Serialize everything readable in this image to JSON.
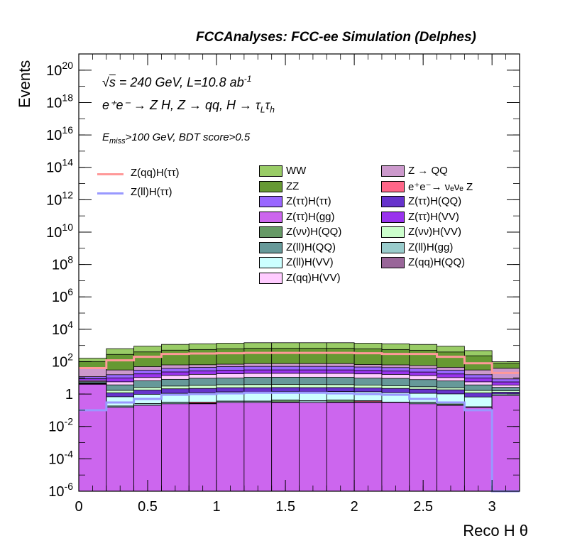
{
  "header": {
    "title": "FCCAnalyses: FCC-ee Simulation (Delphes)"
  },
  "annotations": {
    "line1_sqrt": "s",
    "line1_rest": " = 240 GeV, L=10.8 ab",
    "line1_exp": "-1",
    "line2": "e⁺e⁻ → Z H, Z → qq, H → τ",
    "line2_sub1": "L",
    "line2_tau": "τ",
    "line2_sub2": "h",
    "line3_E": "E",
    "line3_sub": "miss",
    "line3_rest": ">100 GeV, BDT score>0.5"
  },
  "chart_data": {
    "type": "histogram",
    "xlabel": "Reco H θ",
    "ylabel": "Events",
    "log_y": true,
    "xlim": [
      0,
      3.2
    ],
    "ylim": [
      1e-06,
      1e+21
    ],
    "x_ticks": [
      "0",
      "0.5",
      "1",
      "1.5",
      "2",
      "2.5",
      "3"
    ],
    "y_ticks": [
      "10^-6",
      "10^-4",
      "10^-2",
      "1",
      "10^2",
      "10^4",
      "10^6",
      "10^8",
      "10^10",
      "10^12",
      "10^14",
      "10^16",
      "10^18",
      "10^20"
    ],
    "bin_edges": [
      0,
      0.2,
      0.4,
      0.6,
      0.8,
      1.0,
      1.2,
      1.4,
      1.6,
      1.8,
      2.0,
      2.2,
      2.4,
      2.6,
      2.8,
      3.0,
      3.2
    ],
    "stack_order": "bottom-to-top",
    "stacked_series": [
      {
        "name": "Z(ττ)H(gg)",
        "color": "#cc66ee",
        "values": [
          4.0,
          0.15,
          0.2,
          0.25,
          0.25,
          0.3,
          0.3,
          0.3,
          0.3,
          0.3,
          0.3,
          0.3,
          0.25,
          0.2,
          0.15,
          0.8
        ]
      },
      {
        "name": "Z(ll)H(gg)",
        "color": "#99cccc",
        "values": [
          0,
          0.03,
          0.06,
          0.06,
          0.02,
          0.06,
          0.06,
          0.02,
          0.08,
          0.02,
          0.03,
          0.02,
          0.06,
          0.02,
          0.01,
          0
        ]
      },
      {
        "name": "e⁺e⁻→ νₑνₑ Z",
        "color": "#ff6688",
        "values": [
          0,
          0,
          0,
          0,
          0.05,
          0,
          0,
          0,
          0,
          0,
          0.05,
          0,
          0,
          0,
          0,
          0
        ]
      },
      {
        "name": "Z(νν)H(QQ)",
        "color": "#669966",
        "values": [
          0,
          0,
          0,
          0,
          0,
          0,
          0,
          0.1,
          0,
          0.1,
          0,
          0,
          0,
          0.1,
          0,
          0
        ]
      },
      {
        "name": "Z(qq)H(QQ)",
        "color": "#996699",
        "values": [
          0,
          0,
          0,
          0,
          0,
          0,
          0,
          0,
          0,
          0,
          0,
          0,
          0,
          0,
          0.0002,
          0
        ]
      },
      {
        "name": "Z(ll)H(VV)",
        "color": "#ccffff",
        "values": [
          0.2,
          0.5,
          0.7,
          0.8,
          0.9,
          1.0,
          1.0,
          1.0,
          1.0,
          1.0,
          1.0,
          0.9,
          0.8,
          0.7,
          0.5,
          0.2
        ]
      },
      {
        "name": "Z(ττ)H(QQ)",
        "color": "#6633cc",
        "values": [
          0.3,
          0.5,
          0.8,
          1.0,
          1.0,
          1.1,
          1.1,
          1.1,
          1.1,
          1.1,
          1.0,
          1.0,
          0.9,
          0.8,
          0.5,
          0.3
        ]
      },
      {
        "name": "Z(νν)H(VV)",
        "color": "#ccffcc",
        "values": [
          0.3,
          0.5,
          0.8,
          1.0,
          1.2,
          1.3,
          1.4,
          1.4,
          1.4,
          1.3,
          1.2,
          1.0,
          0.8,
          0.6,
          0.5,
          0.3
        ]
      },
      {
        "name": "Z(ll)H(QQ)",
        "color": "#669999",
        "values": [
          1,
          2,
          4,
          5,
          6,
          6,
          7,
          7,
          7,
          7,
          6,
          6,
          5,
          4,
          2,
          1
        ]
      },
      {
        "name": "Z(qq)H(VV)",
        "color": "#ffccff",
        "values": [
          1,
          2,
          4,
          6,
          7,
          8,
          8,
          8,
          8,
          8,
          8,
          7,
          6,
          4,
          2,
          1
        ]
      },
      {
        "name": "Z(ττ)H(VV)",
        "color": "#9933ee",
        "values": [
          2,
          4,
          7,
          9,
          10,
          12,
          12,
          12,
          12,
          12,
          11,
          10,
          9,
          7,
          4,
          2
        ]
      },
      {
        "name": "Z(ττ)H(ττ)",
        "color": "#9966ff",
        "values": [
          3,
          6,
          12,
          15,
          18,
          20,
          20,
          20,
          20,
          20,
          18,
          17,
          15,
          12,
          6,
          3
        ]
      },
      {
        "name": "Z → QQ",
        "color": "#cc99cc",
        "values": [
          30,
          15,
          20,
          25,
          20,
          20,
          25,
          25,
          25,
          25,
          20,
          20,
          20,
          15,
          15,
          30
        ]
      },
      {
        "name": "ZZ",
        "color": "#669933",
        "values": [
          60,
          250,
          350,
          450,
          500,
          550,
          600,
          600,
          600,
          600,
          550,
          500,
          450,
          350,
          200,
          40
        ]
      },
      {
        "name": "WW",
        "color": "#99cc66",
        "values": [
          60,
          350,
          500,
          650,
          700,
          750,
          800,
          800,
          800,
          800,
          750,
          700,
          650,
          500,
          250,
          20
        ]
      }
    ],
    "overlay_series": [
      {
        "name": "Z(qq)H(ττ)",
        "color": "#ff9999",
        "values": [
          40,
          120,
          200,
          300,
          320,
          330,
          350,
          350,
          350,
          350,
          330,
          300,
          300,
          200,
          80,
          20
        ]
      },
      {
        "name": "Z(ll)H(ττ)",
        "color": "#9999ff",
        "values": [
          0.1,
          0.3,
          0.5,
          0.9,
          1.0,
          1.1,
          1.2,
          1.2,
          1.2,
          1.1,
          1.0,
          0.9,
          0.5,
          0.3,
          0.1,
          0
        ]
      }
    ],
    "legend_placement": "top-right",
    "legend": {
      "lines": [
        "Z(qq)H(ττ)",
        "Z(ll)H(ττ)"
      ],
      "left_column": [
        "WW",
        "ZZ",
        "Z(ττ)H(ττ)",
        "Z(ττ)H(gg)",
        "Z(νν)H(QQ)",
        "Z(ll)H(QQ)",
        "Z(ll)H(VV)",
        "Z(qq)H(VV)"
      ],
      "right_column": [
        "Z → QQ",
        "e⁺e⁻→ νₑνₑ Z",
        "Z(ττ)H(QQ)",
        "Z(ττ)H(VV)",
        "Z(νν)H(VV)",
        "Z(ll)H(gg)",
        "Z(qq)H(QQ)"
      ]
    }
  }
}
